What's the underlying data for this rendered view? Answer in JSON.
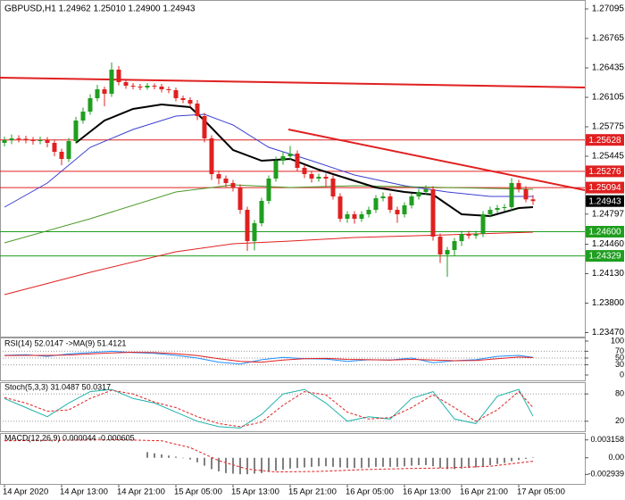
{
  "chart_data": [
    {
      "type": "candlestick",
      "title": "GBPUSD,H1  1.24962 1.25010 1.24900 1.24943",
      "up_color": "#1f9e1f",
      "down_color": "#e02020",
      "candles": {
        "open": [
          1.25595,
          1.25625,
          1.25645,
          1.2564,
          1.25625,
          1.25615,
          1.25625,
          1.25595,
          1.25495,
          1.25415,
          1.25615,
          1.25845,
          1.25945,
          1.26095,
          1.26195,
          1.26145,
          1.26415,
          1.26275,
          1.26235,
          1.26225,
          1.26215,
          1.26235,
          1.26225,
          1.26195,
          1.26185,
          1.26095,
          1.26075,
          1.26035,
          1.25895,
          1.25645,
          1.25245,
          1.25195,
          1.25145,
          1.25095,
          1.24845,
          1.24495,
          1.24695,
          1.24945,
          1.25195,
          1.25395,
          1.25445,
          1.25475,
          1.25315,
          1.25245,
          1.25195,
          1.25215,
          1.25195,
          1.24995,
          1.24745,
          1.24795,
          1.24745,
          1.24795,
          1.24845,
          1.24975,
          1.24995,
          1.24845,
          1.24795,
          1.24895,
          1.24995,
          1.25045,
          1.25075,
          1.24545,
          1.24345,
          1.24395,
          1.24495,
          1.24575,
          1.24555,
          1.24575,
          1.24795,
          1.24845,
          1.24865,
          1.24875,
          1.25145,
          1.25075,
          1.24962
        ],
        "high": [
          1.25665,
          1.2569,
          1.2568,
          1.25675,
          1.2566,
          1.25665,
          1.2566,
          1.25625,
          1.2553,
          1.2565,
          1.25885,
          1.2599,
          1.2614,
          1.26245,
          1.26225,
          1.26495,
          1.26455,
          1.263,
          1.26265,
          1.26255,
          1.26265,
          1.2626,
          1.26255,
          1.26225,
          1.26215,
          1.26125,
          1.26105,
          1.26075,
          1.2593,
          1.2568,
          1.25285,
          1.2523,
          1.2518,
          1.2513,
          1.2488,
          1.2473,
          1.2498,
          1.2523,
          1.2544,
          1.255,
          1.2556,
          1.2551,
          1.2535,
          1.2528,
          1.2525,
          1.2525,
          1.2523,
          1.2503,
          1.2483,
          1.2483,
          1.2483,
          1.2488,
          1.2501,
          1.2504,
          1.2503,
          1.2488,
          1.2493,
          1.2503,
          1.2508,
          1.2512,
          1.2511,
          1.2458,
          1.2443,
          1.2453,
          1.2461,
          1.2461,
          1.2461,
          1.2483,
          1.2488,
          1.249,
          1.2491,
          1.252,
          1.2518,
          1.2511,
          1.2501
        ],
        "low": [
          1.25555,
          1.2558,
          1.256,
          1.2559,
          1.25575,
          1.2558,
          1.25545,
          1.25445,
          1.25345,
          1.2538,
          1.2559,
          1.2581,
          1.2591,
          1.2606,
          1.26005,
          1.2611,
          1.2624,
          1.262,
          1.26195,
          1.26185,
          1.2619,
          1.26195,
          1.2616,
          1.2615,
          1.2606,
          1.2604,
          1.25995,
          1.2585,
          1.256,
          1.2518,
          1.2513,
          1.251,
          1.2505,
          1.248,
          1.24385,
          1.2439,
          1.2466,
          1.2491,
          1.2516,
          1.2535,
          1.254,
          1.2528,
          1.252,
          1.2515,
          1.2516,
          1.251,
          1.2496,
          1.2471,
          1.247,
          1.2469,
          1.2471,
          1.2476,
          1.2481,
          1.2494,
          1.2481,
          1.247,
          1.2476,
          1.2486,
          1.2496,
          1.2501,
          1.245,
          1.2425,
          1.24095,
          1.2433,
          1.2444,
          1.2452,
          1.2452,
          1.2454,
          1.2476,
          1.2481,
          1.2483,
          1.2484,
          1.2504,
          1.2493,
          1.249
        ],
        "close": [
          1.25625,
          1.25645,
          1.2564,
          1.25625,
          1.25615,
          1.25625,
          1.25595,
          1.25495,
          1.25415,
          1.25615,
          1.25845,
          1.25945,
          1.26095,
          1.26195,
          1.26145,
          1.26415,
          1.26275,
          1.26235,
          1.26225,
          1.26215,
          1.26235,
          1.26225,
          1.26195,
          1.26185,
          1.26095,
          1.26075,
          1.26035,
          1.25895,
          1.25645,
          1.25245,
          1.25195,
          1.25145,
          1.25095,
          1.24845,
          1.24495,
          1.24695,
          1.24945,
          1.25195,
          1.25395,
          1.25445,
          1.25475,
          1.25315,
          1.25245,
          1.25195,
          1.25215,
          1.25195,
          1.24995,
          1.24745,
          1.24795,
          1.24745,
          1.24795,
          1.24845,
          1.24975,
          1.24995,
          1.24845,
          1.24795,
          1.24895,
          1.24995,
          1.25045,
          1.25075,
          1.24545,
          1.24345,
          1.24395,
          1.24495,
          1.24575,
          1.24555,
          1.24575,
          1.24795,
          1.24845,
          1.24865,
          1.24875,
          1.25145,
          1.25075,
          1.24962,
          1.24943
        ]
      },
      "series": [
        {
          "color": "#3a3fd0",
          "width": 1,
          "x": [
            0,
            6,
            12,
            18,
            24,
            28,
            32,
            37,
            43,
            49,
            56,
            62,
            68,
            74
          ],
          "values": [
            1.24875,
            1.25145,
            1.25545,
            1.25745,
            1.25895,
            1.25915,
            1.25795,
            1.25545,
            1.25395,
            1.25235,
            1.25115,
            1.25045,
            1.24995,
            1.24995
          ]
        },
        {
          "color": "#4a9a2a",
          "width": 1,
          "x": [
            0,
            12,
            24,
            32,
            40,
            49,
            62,
            74
          ],
          "values": [
            1.24475,
            1.24745,
            1.25045,
            1.25125,
            1.25095,
            1.25115,
            1.25095,
            1.25075
          ]
        },
        {
          "color": "#e02020",
          "width": 1,
          "x": [
            0,
            12,
            24,
            32,
            40,
            49,
            62,
            74
          ],
          "values": [
            1.23895,
            1.24145,
            1.24375,
            1.24465,
            1.24495,
            1.24535,
            1.24565,
            1.24595
          ]
        },
        {
          "color": "#000000",
          "width": 2,
          "x": [
            10,
            14,
            18,
            22,
            26,
            28,
            32,
            36,
            40,
            44,
            48,
            52,
            56,
            60,
            64,
            68,
            72,
            74
          ],
          "values": [
            1.25595,
            1.25845,
            1.25975,
            1.26025,
            1.25995,
            1.25845,
            1.25515,
            1.25395,
            1.25415,
            1.25295,
            1.25195,
            1.25095,
            1.25045,
            1.25015,
            1.24795,
            1.24775,
            1.24865,
            1.24875
          ]
        }
      ],
      "levels": [
        {
          "value": 1.25628,
          "color": "#e02020"
        },
        {
          "value": 1.25276,
          "color": "#e02020"
        },
        {
          "value": 1.25094,
          "color": "#e02020"
        },
        {
          "value": 1.246,
          "label": "1.24600",
          "color": "#1f9e1f"
        },
        {
          "value": 1.24329,
          "color": "#1f9e1f"
        }
      ],
      "trendlines": [
        {
          "color": "#e02020",
          "x": [
            -0.625,
            81.25
          ],
          "values": [
            1.26325,
            1.26215
          ]
        },
        {
          "color": "#e02020",
          "x": [
            39.75,
            81.25
          ],
          "values": [
            1.25745,
            1.25065
          ]
        }
      ],
      "xlim": [
        -0.625,
        81.25
      ],
      "xticks": [
        {
          "value": 0,
          "label": "14 Apr 2020"
        },
        {
          "value": 8,
          "label": "14 Apr 13:00"
        },
        {
          "value": 16,
          "label": "14 Apr 21:00"
        },
        {
          "value": 24,
          "label": "15 Apr 05:00"
        },
        {
          "value": 32,
          "label": "15 Apr 13:00"
        },
        {
          "value": 40,
          "label": "15 Apr 21:00"
        },
        {
          "value": 48,
          "label": "16 Apr 05:00"
        },
        {
          "value": 56,
          "label": "16 Apr 13:00"
        },
        {
          "value": 64,
          "label": "16 Apr 21:00"
        },
        {
          "value": 72,
          "label": "17 Apr 05:00"
        }
      ],
      "ylim": [
        1.23445,
        1.27175
      ],
      "yticks": [
        1.27095,
        1.26765,
        1.26435,
        1.26105,
        1.25775,
        1.25445,
        1.24797,
        {
          "value": 1.2446,
          "label": "1.24460"
        },
        {
          "value": 1.2413,
          "label": "1.24130"
        },
        {
          "value": 1.238,
          "label": "1.23800"
        },
        {
          "value": 1.2347,
          "label": "1.23470"
        }
      ]
    },
    {
      "type": "line",
      "title": "RSI(14) 52.0147 ->MA(9) 51.4121",
      "grid": true,
      "ylim": [
        0,
        100
      ],
      "yticks": [
        100,
        70,
        50,
        30,
        0
      ],
      "series": [
        {
          "color": "#1e90ff",
          "x": [
            0,
            3,
            6,
            9,
            12,
            15,
            18,
            21,
            24,
            27,
            30,
            33,
            36,
            39,
            42,
            45,
            48,
            51,
            54,
            57,
            60,
            63,
            66,
            69,
            72,
            74
          ],
          "values": [
            58,
            60,
            55,
            62,
            66,
            70,
            66,
            64,
            58,
            50,
            38,
            32,
            45,
            52,
            48,
            47,
            40,
            45,
            44,
            50,
            36,
            42,
            45,
            55,
            58,
            52.0147
          ]
        },
        {
          "color": "#e02020",
          "x": [
            0,
            3,
            6,
            9,
            12,
            15,
            18,
            21,
            24,
            27,
            30,
            33,
            36,
            39,
            42,
            45,
            48,
            51,
            54,
            57,
            60,
            63,
            66,
            69,
            72,
            74
          ],
          "values": [
            57,
            58,
            58,
            59,
            62,
            65,
            67,
            66,
            63,
            57,
            48,
            40,
            38,
            44,
            48,
            49,
            46,
            45,
            44,
            46,
            44,
            42,
            43,
            48,
            53,
            51.4121
          ]
        }
      ]
    },
    {
      "type": "line",
      "title": "Stoch(5,3,3) 31.0487 50.0317",
      "grid": true,
      "ylim": [
        0,
        100
      ],
      "yticks": [
        80,
        20
      ],
      "series": [
        {
          "color": "#20b2aa",
          "x": [
            0,
            3,
            6,
            9,
            12,
            15,
            18,
            21,
            24,
            27,
            30,
            33,
            36,
            39,
            42,
            45,
            48,
            51,
            54,
            57,
            60,
            63,
            66,
            69,
            72,
            74
          ],
          "values": [
            70,
            50,
            30,
            60,
            85,
            90,
            70,
            60,
            40,
            20,
            8,
            5,
            35,
            80,
            90,
            60,
            20,
            30,
            25,
            70,
            85,
            25,
            15,
            75,
            90,
            31.0487
          ]
        },
        {
          "color": "#e02020",
          "dash": true,
          "x": [
            0,
            3,
            6,
            9,
            12,
            15,
            18,
            21,
            24,
            27,
            30,
            33,
            36,
            39,
            42,
            45,
            48,
            51,
            54,
            57,
            60,
            63,
            66,
            69,
            72,
            74
          ],
          "values": [
            72,
            60,
            42,
            45,
            70,
            88,
            80,
            62,
            50,
            30,
            15,
            8,
            18,
            55,
            85,
            78,
            40,
            25,
            28,
            50,
            78,
            50,
            20,
            45,
            85,
            50.0317
          ]
        }
      ]
    },
    {
      "type": "line",
      "title": "MACD(12,26,9) 0.000044 -0.000605",
      "grid": false,
      "ylim": [
        -0.0043,
        0.0039
      ],
      "yticks": [
        0.003158,
        {
          "value": 0,
          "label": "0.00"
        },
        -0.002939
      ],
      "series": [
        {
          "color": "#000000",
          "style": "histogram",
          "x": [
            20,
            21,
            22,
            23,
            24,
            25,
            26,
            27,
            28,
            29,
            30,
            31,
            32,
            33,
            34,
            35,
            36,
            37,
            38,
            39,
            40,
            41,
            42,
            43,
            44,
            45,
            46,
            47,
            48,
            49,
            50,
            51,
            52,
            53,
            54,
            55,
            56,
            57,
            58,
            59,
            60,
            61,
            62,
            63,
            64,
            65,
            66,
            67,
            68,
            69,
            70,
            71,
            72,
            73,
            74
          ],
          "values": [
            0.001,
            0.0008,
            0.0006,
            0.0004,
            0.0002,
            0.0,
            -0.0003,
            -0.0008,
            -0.0014,
            -0.002,
            -0.0024,
            -0.0027,
            -0.0028,
            -0.0029,
            -0.0029,
            -0.0028,
            -0.0027,
            -0.0025,
            -0.0023,
            -0.0021,
            -0.0019,
            -0.0018,
            -0.0017,
            -0.0016,
            -0.0015,
            -0.0015,
            -0.0016,
            -0.0017,
            -0.0018,
            -0.0018,
            -0.0018,
            -0.0017,
            -0.0016,
            -0.0016,
            -0.0016,
            -0.0016,
            -0.0015,
            -0.0014,
            -0.0013,
            -0.0013,
            -0.0015,
            -0.0018,
            -0.002,
            -0.002,
            -0.0019,
            -0.0018,
            -0.0017,
            -0.0015,
            -0.0013,
            -0.0011,
            -0.0009,
            -0.0006,
            -0.0004,
            -0.0002,
            4.4e-05
          ]
        },
        {
          "color": "#e02020",
          "dash": true,
          "x": [
            0,
            8,
            16,
            22,
            26,
            30,
            34,
            38,
            44,
            50,
            56,
            62,
            68,
            74
          ],
          "values": [
            0.003,
            0.0031,
            0.0032,
            0.003,
            0.0018,
            -0.0005,
            -0.002,
            -0.0025,
            -0.0024,
            -0.0021,
            -0.0019,
            -0.0018,
            -0.0015,
            -0.000605
          ]
        }
      ]
    }
  ]
}
